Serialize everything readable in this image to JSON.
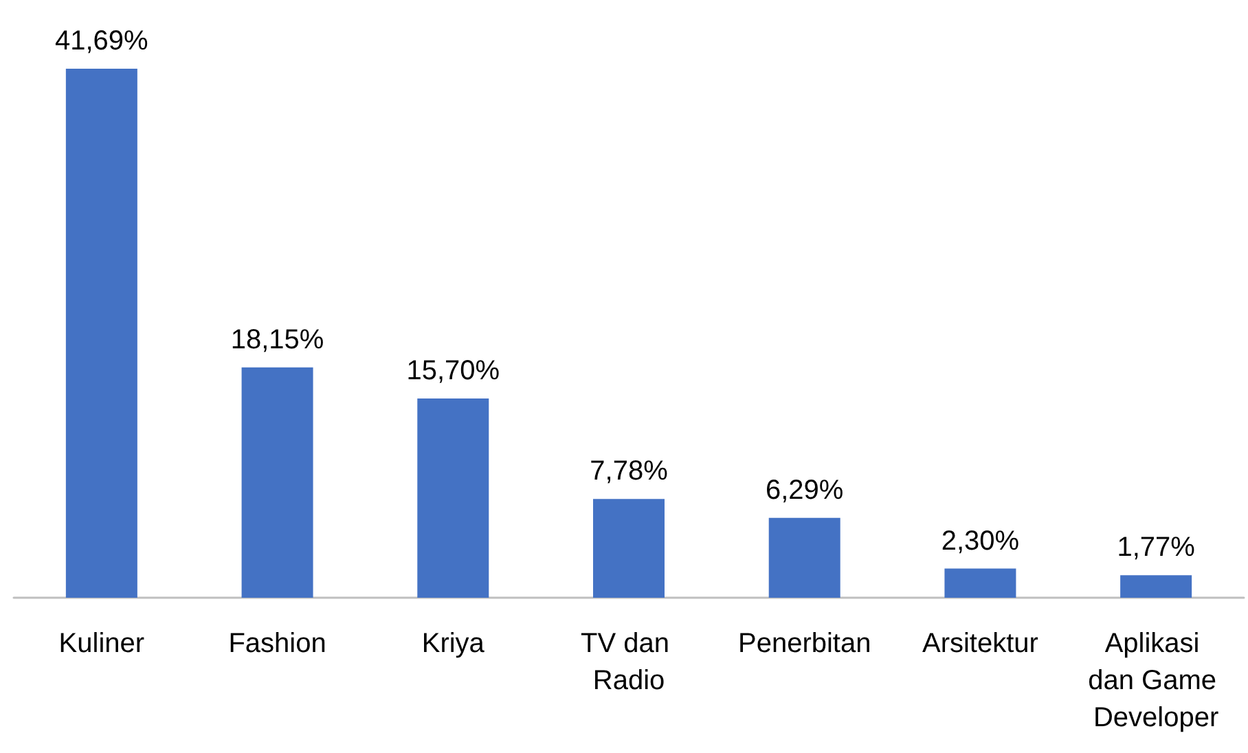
{
  "chart_data": {
    "type": "bar",
    "categories": [
      "Kuliner",
      "Fashion",
      "Kriya",
      "TV dan Radio",
      "Penerbitan",
      "Arsitektur",
      "Aplikasi dan Game Developer"
    ],
    "values": [
      41.69,
      18.15,
      15.7,
      7.78,
      6.29,
      2.3,
      1.77
    ],
    "value_labels": [
      "41,69%",
      "18,15%",
      "15,70%",
      "7,78%",
      "6,29%",
      "2,30%",
      "1,77%"
    ],
    "color": "#4472c4"
  }
}
